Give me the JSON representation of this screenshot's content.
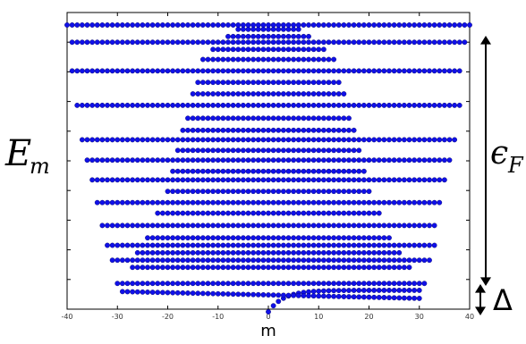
{
  "chart_data": {
    "type": "scatter",
    "title": "",
    "xlabel": "m",
    "ylabel": "E_m",
    "xlim": [
      -40,
      40
    ],
    "x_ticks": [
      "-40",
      "-30",
      "-20",
      "-10",
      "0",
      "10",
      "20",
      "30",
      "40"
    ],
    "grid": false,
    "legend": "none",
    "point_color": "#1010e8",
    "annotations": [
      {
        "name": "fermi-energy",
        "label": "ϵ",
        "subscript": "F"
      },
      {
        "name": "gap",
        "label": "Δ"
      }
    ],
    "ylabel_parts": {
      "main": "E",
      "sub": "m"
    },
    "bands": [
      {
        "xmin": 0,
        "xmax": 30,
        "level": 0.0
      },
      {
        "xmin": -29,
        "xmax": 30,
        "level": 0.059
      },
      {
        "xmin": -30,
        "xmax": 31,
        "level": 0.099
      },
      {
        "xmin": -27,
        "xmax": 28,
        "level": 0.155
      },
      {
        "xmin": -31,
        "xmax": 32,
        "level": 0.18
      },
      {
        "xmin": -26,
        "xmax": 26,
        "level": 0.206
      },
      {
        "xmin": -32,
        "xmax": 33,
        "level": 0.232
      },
      {
        "xmin": -24,
        "xmax": 24,
        "level": 0.258
      },
      {
        "xmin": -33,
        "xmax": 33,
        "level": 0.301
      },
      {
        "xmin": -22,
        "xmax": 22,
        "level": 0.344
      },
      {
        "xmin": -34,
        "xmax": 34,
        "level": 0.381
      },
      {
        "xmin": -20,
        "xmax": 20,
        "level": 0.42
      },
      {
        "xmin": -35,
        "xmax": 35,
        "level": 0.46
      },
      {
        "xmin": -19,
        "xmax": 19,
        "level": 0.49
      },
      {
        "xmin": -36,
        "xmax": 36,
        "level": 0.529
      },
      {
        "xmin": -18,
        "xmax": 18,
        "level": 0.563
      },
      {
        "xmin": -37,
        "xmax": 37,
        "level": 0.6
      },
      {
        "xmin": -17,
        "xmax": 17,
        "level": 0.633
      },
      {
        "xmin": -16,
        "xmax": 16,
        "level": 0.675
      },
      {
        "xmin": -38,
        "xmax": 38,
        "level": 0.72
      },
      {
        "xmin": -15,
        "xmax": 15,
        "level": 0.76
      },
      {
        "xmin": -14,
        "xmax": 14,
        "level": 0.8
      },
      {
        "xmin": -39,
        "xmax": 38,
        "level": 0.84
      },
      {
        "xmin": -13,
        "xmax": 13,
        "level": 0.88
      },
      {
        "xmin": -11,
        "xmax": 11,
        "level": 0.915
      },
      {
        "xmin": -39,
        "xmax": 39,
        "level": 0.94
      },
      {
        "xmin": -8,
        "xmax": 8,
        "level": 0.96
      },
      {
        "xmin": -6,
        "xmax": 6,
        "level": 0.985
      },
      {
        "xmin": -40,
        "xmax": 40,
        "level": 1.0
      }
    ]
  }
}
